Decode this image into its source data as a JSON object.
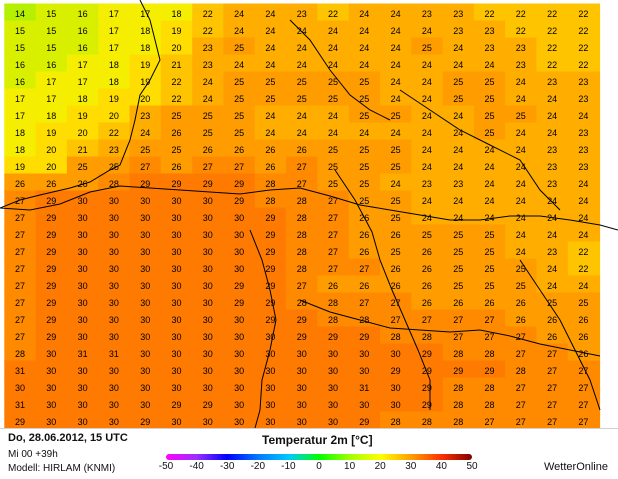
{
  "footer": {
    "valid_time": "Do, 28.06.2012, 15 UTC",
    "run_info": "Mi 00 +39h",
    "model": "Modell: HIRLAM (KNMI)",
    "title": "Temperatur 2m [°C]",
    "brand": "WetterOnline"
  },
  "legend": {
    "ticks": [
      "-50",
      "-40",
      "-30",
      "-20",
      "-10",
      "0",
      "10",
      "20",
      "30",
      "40",
      "50"
    ],
    "colors": [
      "#ff00ff",
      "#9b30ff",
      "#0000ff",
      "#0078ff",
      "#00c8ff",
      "#00ff00",
      "#a0ff00",
      "#ffff00",
      "#ffa000",
      "#ff3000",
      "#800000"
    ]
  },
  "map": {
    "colors": {
      "t14": "#b4f000",
      "t16": "#d8f000",
      "t18": "#f6ee00",
      "t20": "#ffdd00",
      "t22": "#ffc400",
      "t24": "#ffae00",
      "t26": "#ff9c00",
      "t28": "#ff8a00",
      "t30": "#ff7a00",
      "coast": "#000000"
    },
    "grid": [
      [
        14,
        15,
        16,
        17,
        17,
        18,
        22,
        24,
        24,
        23,
        22,
        24,
        24,
        23,
        23,
        22,
        22,
        22,
        22
      ],
      [
        15,
        15,
        16,
        17,
        18,
        19,
        22,
        24,
        24,
        24,
        24,
        24,
        24,
        24,
        23,
        23,
        22,
        22,
        22
      ],
      [
        15,
        15,
        16,
        17,
        18,
        20,
        23,
        25,
        24,
        24,
        24,
        24,
        24,
        25,
        24,
        23,
        23,
        22,
        22
      ],
      [
        16,
        16,
        17,
        18,
        19,
        21,
        23,
        24,
        24,
        24,
        24,
        24,
        24,
        24,
        24,
        24,
        23,
        22,
        22
      ],
      [
        16,
        17,
        17,
        18,
        19,
        22,
        24,
        25,
        25,
        25,
        25,
        25,
        24,
        24,
        25,
        25,
        24,
        23,
        23
      ],
      [
        17,
        17,
        18,
        19,
        20,
        22,
        24,
        25,
        25,
        25,
        25,
        25,
        24,
        24,
        25,
        25,
        24,
        24,
        23
      ],
      [
        17,
        18,
        19,
        20,
        23,
        25,
        25,
        25,
        24,
        24,
        24,
        25,
        25,
        24,
        24,
        25,
        25,
        24,
        24
      ],
      [
        18,
        19,
        20,
        22,
        24,
        26,
        25,
        25,
        24,
        24,
        24,
        24,
        24,
        24,
        24,
        25,
        24,
        24,
        23
      ],
      [
        18,
        20,
        21,
        23,
        25,
        25,
        26,
        26,
        26,
        26,
        25,
        25,
        25,
        24,
        24,
        24,
        24,
        23,
        23
      ],
      [
        19,
        20,
        25,
        25,
        27,
        26,
        27,
        27,
        26,
        27,
        25,
        25,
        25,
        24,
        24,
        24,
        24,
        23,
        23
      ],
      [
        26,
        26,
        26,
        28,
        29,
        29,
        29,
        29,
        28,
        27,
        25,
        25,
        24,
        23,
        23,
        24,
        24,
        23,
        24
      ],
      [
        27,
        29,
        30,
        30,
        30,
        30,
        30,
        29,
        28,
        28,
        27,
        25,
        25,
        24,
        24,
        24,
        24,
        24,
        24
      ],
      [
        27,
        29,
        30,
        30,
        30,
        30,
        30,
        30,
        29,
        28,
        27,
        26,
        25,
        24,
        24,
        24,
        24,
        24,
        24
      ],
      [
        27,
        29,
        30,
        30,
        30,
        30,
        30,
        30,
        29,
        28,
        27,
        26,
        26,
        25,
        25,
        25,
        24,
        24,
        24
      ],
      [
        27,
        29,
        30,
        30,
        30,
        30,
        30,
        30,
        29,
        28,
        27,
        26,
        25,
        26,
        25,
        25,
        24,
        23,
        22
      ],
      [
        27,
        29,
        30,
        30,
        30,
        30,
        30,
        30,
        29,
        28,
        27,
        27,
        26,
        26,
        25,
        25,
        25,
        24,
        22
      ],
      [
        27,
        29,
        30,
        30,
        30,
        30,
        30,
        29,
        29,
        27,
        26,
        26,
        26,
        26,
        25,
        25,
        25,
        24,
        24
      ],
      [
        27,
        29,
        30,
        30,
        30,
        30,
        30,
        29,
        29,
        28,
        28,
        27,
        27,
        26,
        26,
        26,
        26,
        25,
        25
      ],
      [
        27,
        29,
        30,
        30,
        30,
        30,
        30,
        30,
        29,
        29,
        28,
        28,
        27,
        27,
        27,
        27,
        26,
        26,
        26
      ],
      [
        27,
        29,
        30,
        30,
        30,
        30,
        30,
        30,
        30,
        29,
        29,
        29,
        28,
        28,
        27,
        27,
        27,
        26,
        26
      ],
      [
        28,
        30,
        31,
        31,
        30,
        30,
        30,
        30,
        30,
        30,
        30,
        30,
        30,
        29,
        28,
        28,
        27,
        27,
        26
      ],
      [
        31,
        30,
        30,
        30,
        30,
        30,
        30,
        30,
        30,
        30,
        30,
        30,
        29,
        29,
        29,
        29,
        28,
        27,
        27
      ],
      [
        30,
        30,
        30,
        30,
        30,
        30,
        30,
        30,
        30,
        30,
        30,
        31,
        30,
        29,
        28,
        28,
        27,
        27,
        27
      ],
      [
        31,
        30,
        30,
        30,
        30,
        29,
        29,
        30,
        30,
        30,
        30,
        30,
        30,
        29,
        28,
        28,
        27,
        27,
        27
      ],
      [
        29,
        30,
        30,
        30,
        29,
        30,
        30,
        30,
        30,
        30,
        30,
        29,
        28,
        28,
        28,
        27,
        27,
        27,
        27
      ]
    ]
  }
}
